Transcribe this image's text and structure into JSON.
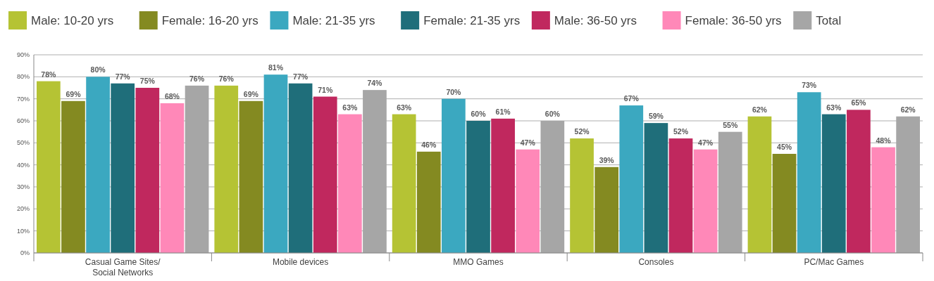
{
  "chart_data": {
    "type": "bar",
    "categories": [
      "Casual Game Sites/\nSocial Networks",
      "Mobile devices",
      "MMO Games",
      "Consoles",
      "PC/Mac Games"
    ],
    "series": [
      {
        "name": "Male: 10-20 yrs",
        "color": "#b5c334",
        "values": [
          78,
          76,
          63,
          52,
          62
        ],
        "value_labels": [
          "78%",
          "76%",
          "63%",
          "52%",
          "62%"
        ]
      },
      {
        "name": "Female: 16-20 yrs",
        "color": "#848a21",
        "values": [
          69,
          69,
          46,
          39,
          45
        ],
        "value_labels": [
          "69%",
          "69%",
          "46%",
          "39%",
          "45%"
        ]
      },
      {
        "name": "Male: 21-35 yrs",
        "color": "#3ba8c0",
        "values": [
          80,
          81,
          70,
          67,
          73
        ],
        "value_labels": [
          "80%",
          "81%",
          "70%",
          "67%",
          "73%"
        ]
      },
      {
        "name": "Female: 21-35 yrs",
        "color": "#1f6e7a",
        "values": [
          77,
          77,
          60,
          59,
          63
        ],
        "value_labels": [
          "77%",
          "77%",
          "60%",
          "59%",
          "63%"
        ]
      },
      {
        "name": "Male: 36-50 yrs",
        "color": "#c0285e",
        "values": [
          75,
          71,
          61,
          52,
          65
        ],
        "value_labels": [
          "75%",
          "71%",
          "61%",
          "52%",
          "65%"
        ]
      },
      {
        "name": "Female: 36-50 yrs",
        "color": "#ff88b8",
        "values": [
          68,
          63,
          47,
          47,
          48
        ],
        "value_labels": [
          "68%",
          "63%",
          "47%",
          "47%",
          "48%"
        ]
      },
      {
        "name": "Total",
        "color": "#a6a6a6",
        "values": [
          76,
          74,
          60,
          55,
          62
        ],
        "value_labels": [
          "76%",
          "74%",
          "60%",
          "55%",
          "62%"
        ]
      }
    ],
    "ylim": [
      0,
      90
    ],
    "yticks": [
      {
        "value": 0,
        "label": "0%"
      },
      {
        "value": 10,
        "label": "10%"
      },
      {
        "value": 20,
        "label": "20%"
      },
      {
        "value": 30,
        "label": "30%"
      },
      {
        "value": 40,
        "label": "40%"
      },
      {
        "value": 50,
        "label": "50%"
      },
      {
        "value": 60,
        "label": "60%"
      },
      {
        "value": 70,
        "label": "70%"
      },
      {
        "value": 80,
        "label": "80%"
      },
      {
        "value": 90,
        "label": "90%"
      }
    ],
    "grid": "y",
    "legend": "top"
  }
}
